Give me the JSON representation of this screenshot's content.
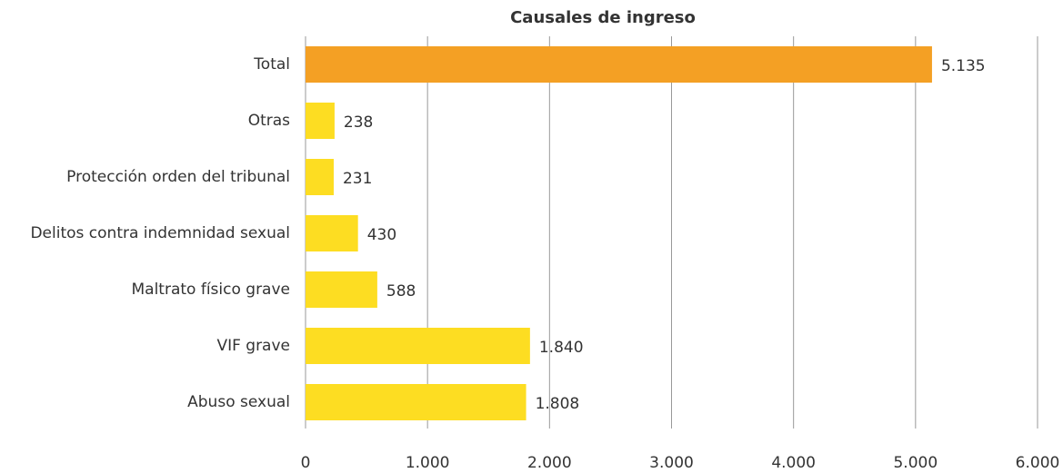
{
  "chart_data": {
    "type": "barh",
    "title": "Causales de ingreso",
    "categories": [
      "Total",
      "Otras",
      "Protección orden del tribunal",
      "Delitos contra indemnidad sexual",
      "Maltrato físico grave",
      "VIF grave",
      "Abuso sexual"
    ],
    "values": [
      5135,
      238,
      231,
      430,
      588,
      1840,
      1808
    ],
    "value_labels": [
      "5.135",
      "238",
      "231",
      "430",
      "588",
      "1.840",
      "1.808"
    ],
    "colors": [
      "#f4a024",
      "#fddd22",
      "#fddd22",
      "#fddd22",
      "#fddd22",
      "#fddd22",
      "#fddd22"
    ],
    "xlim": [
      0,
      6000
    ],
    "xticks": [
      0,
      {
        "value": 1000,
        "label": "1.000"
      },
      {
        "value": 2000,
        "label": "2.000"
      },
      {
        "value": 3000,
        "label": "3.000"
      },
      {
        "value": 4000,
        "label": "4.000"
      },
      {
        "value": 5000,
        "label": "5.000"
      },
      {
        "value": 6000,
        "label": "6.000"
      }
    ],
    "grid": true
  }
}
